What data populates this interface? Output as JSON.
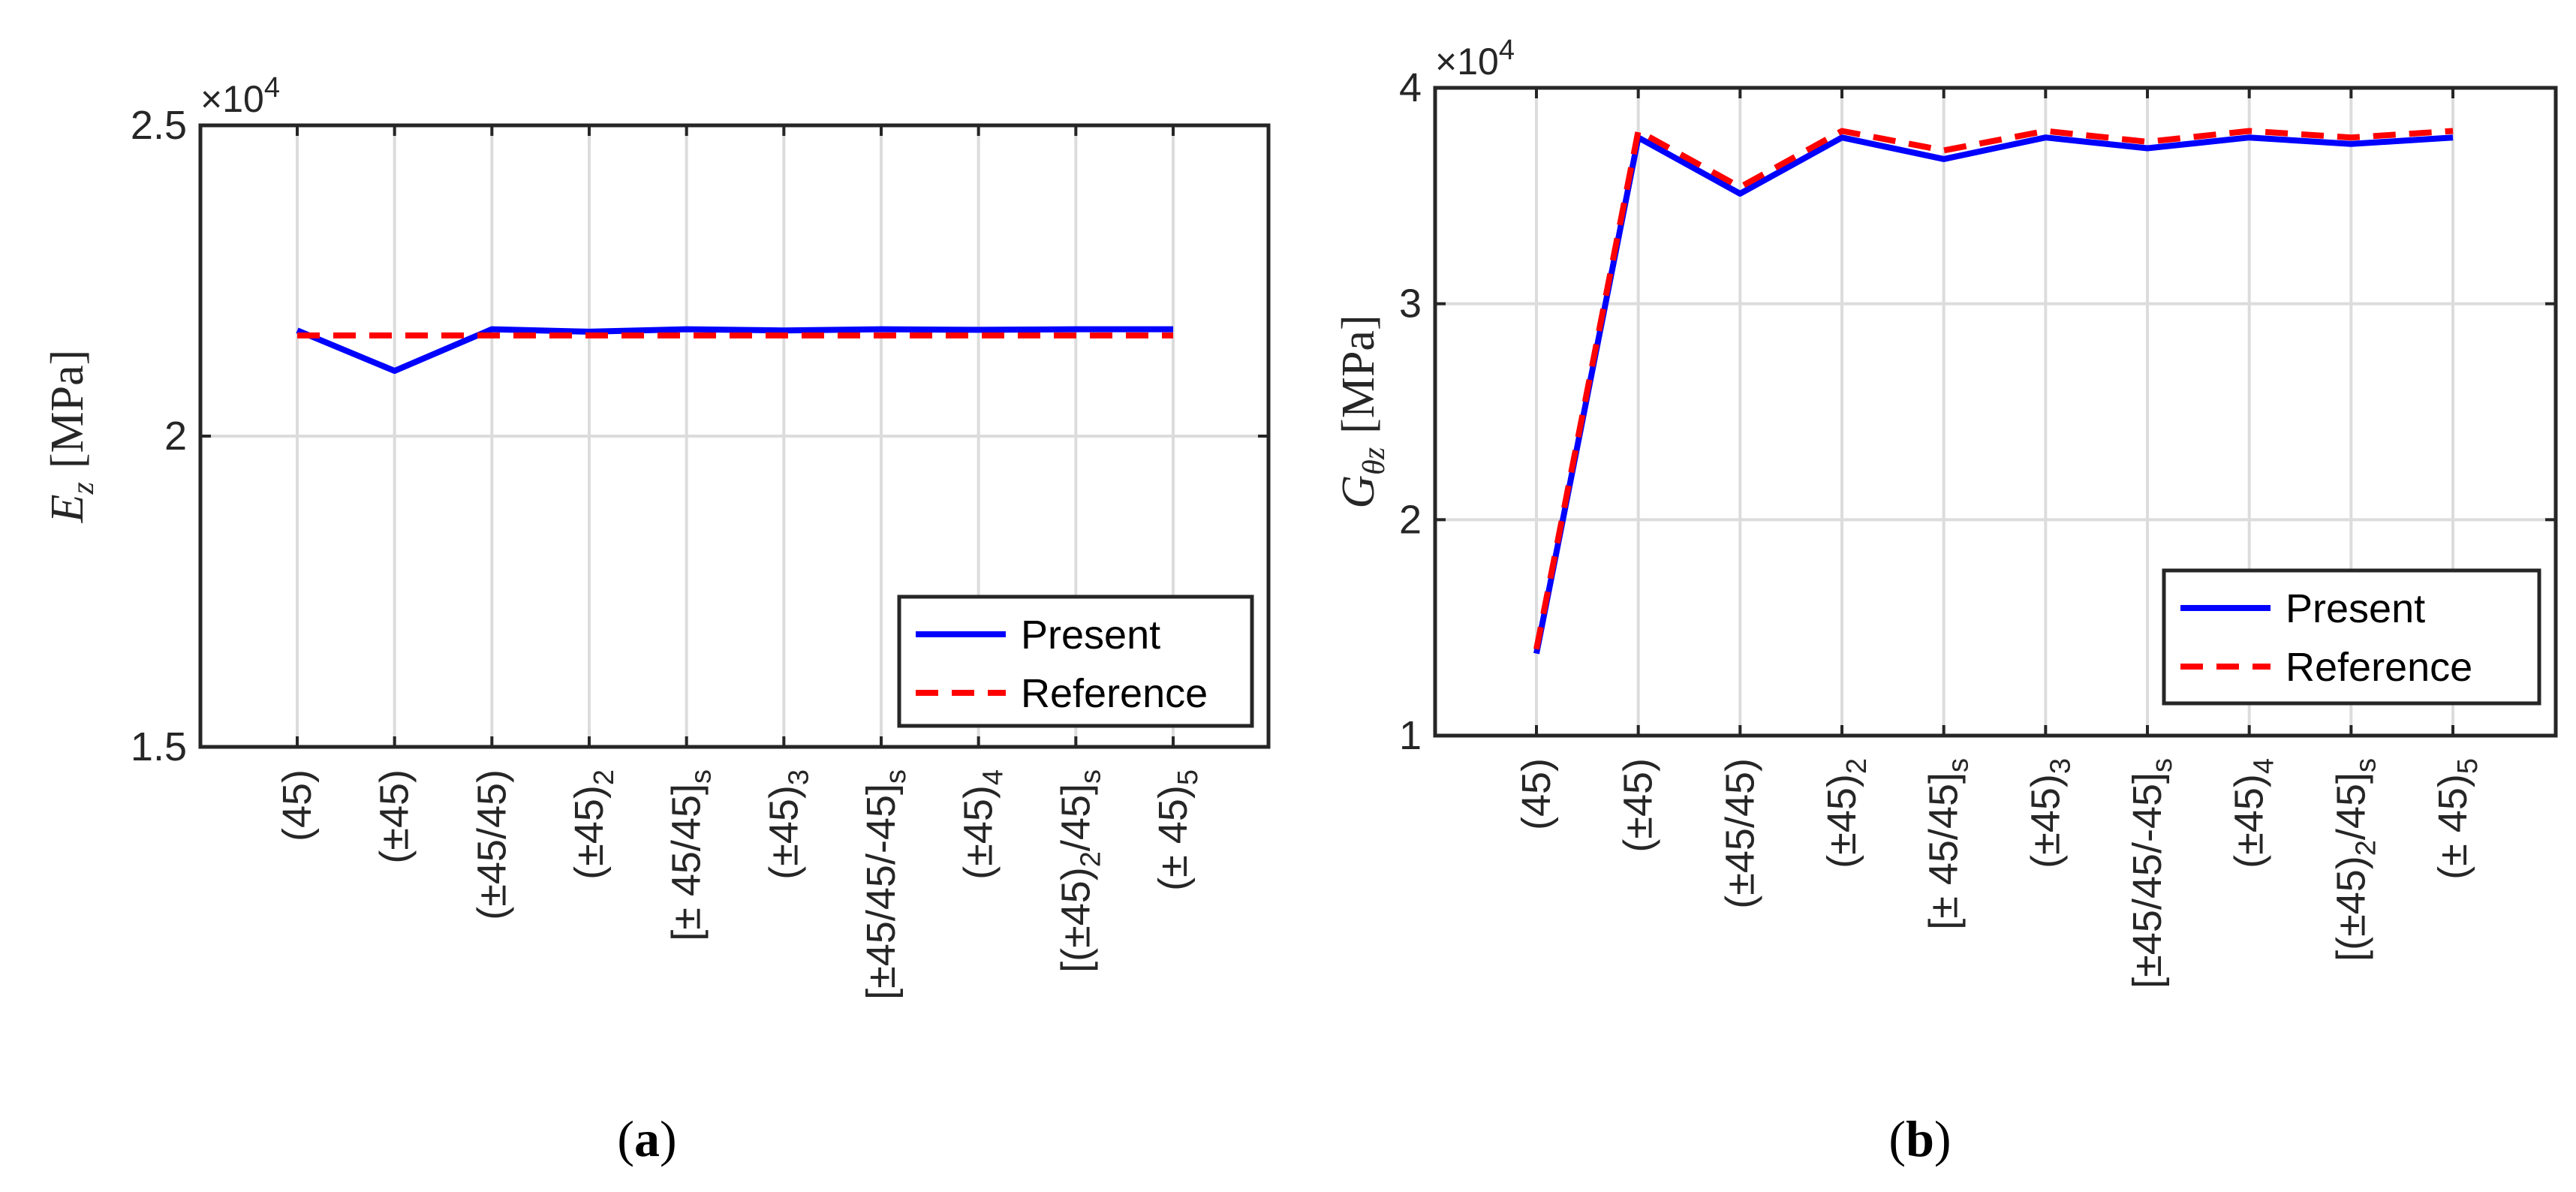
{
  "chart_data": [
    {
      "type": "line",
      "panel_label": "a",
      "ylabel": {
        "symbol": "E",
        "subscript": "z",
        "unit": "[MPa]"
      },
      "y_exponent": "×10",
      "y_exponent_power": "4",
      "ylim": [
        1.5,
        2.5
      ],
      "yticks": [
        "1.5",
        "2",
        "2.5"
      ],
      "categories": [
        {
          "text": "(45)",
          "sub": ""
        },
        {
          "text": "(±45)",
          "sub": ""
        },
        {
          "text": "(±45/45)",
          "sub": ""
        },
        {
          "text": "(±45)",
          "sub": "2"
        },
        {
          "text": "[± 45/45]",
          "sub": "s"
        },
        {
          "text": "(±45)",
          "sub": "3"
        },
        {
          "text": "[±45/45/-45]",
          "sub": "s"
        },
        {
          "text": "(±45)",
          "sub": "4"
        },
        {
          "text": "[(±45)",
          "mid": "2",
          "tail": "/45]",
          "sub": "s"
        },
        {
          "text": "(± 45)",
          "sub": "5"
        }
      ],
      "grid": true,
      "legend_position": "bottom-right",
      "series": [
        {
          "name": "Present",
          "style": "solid",
          "color": "#0000ff",
          "values": [
            2.17,
            2.105,
            2.172,
            2.168,
            2.172,
            2.17,
            2.172,
            2.171,
            2.172,
            2.172
          ]
        },
        {
          "name": "Reference",
          "style": "dashed",
          "color": "#ff0000",
          "values": [
            2.162,
            2.162,
            2.162,
            2.162,
            2.162,
            2.162,
            2.162,
            2.162,
            2.162,
            2.162
          ]
        }
      ]
    },
    {
      "type": "line",
      "panel_label": "b",
      "ylabel": {
        "symbol": "G",
        "subscript": "θz",
        "unit": "[MPa]"
      },
      "y_exponent": "×10",
      "y_exponent_power": "4",
      "ylim": [
        1,
        4
      ],
      "yticks": [
        "1",
        "2",
        "3",
        "4"
      ],
      "categories": [
        {
          "text": "(45)",
          "sub": ""
        },
        {
          "text": "(±45)",
          "sub": ""
        },
        {
          "text": "(±45/45)",
          "sub": ""
        },
        {
          "text": "(±45)",
          "sub": "2"
        },
        {
          "text": "[± 45/45]",
          "sub": "s"
        },
        {
          "text": "(±45)",
          "sub": "3"
        },
        {
          "text": "[±45/45/-45]",
          "sub": "s"
        },
        {
          "text": "(±45)",
          "sub": "4"
        },
        {
          "text": "[(±45)",
          "mid": "2",
          "tail": "/45]",
          "sub": "s"
        },
        {
          "text": "(± 45)",
          "sub": "5"
        }
      ],
      "grid": true,
      "legend_position": "bottom-right",
      "series": [
        {
          "name": "Present",
          "style": "solid",
          "color": "#0000ff",
          "values": [
            1.38,
            3.77,
            3.51,
            3.77,
            3.67,
            3.77,
            3.72,
            3.77,
            3.74,
            3.77
          ]
        },
        {
          "name": "Reference",
          "style": "dashed",
          "color": "#ff0000",
          "values": [
            1.4,
            3.8,
            3.54,
            3.8,
            3.71,
            3.8,
            3.75,
            3.8,
            3.77,
            3.8
          ]
        }
      ]
    }
  ],
  "captions": [
    {
      "open": "(",
      "label": "a",
      "close": ")"
    },
    {
      "open": "(",
      "label": "b",
      "close": ")"
    }
  ]
}
